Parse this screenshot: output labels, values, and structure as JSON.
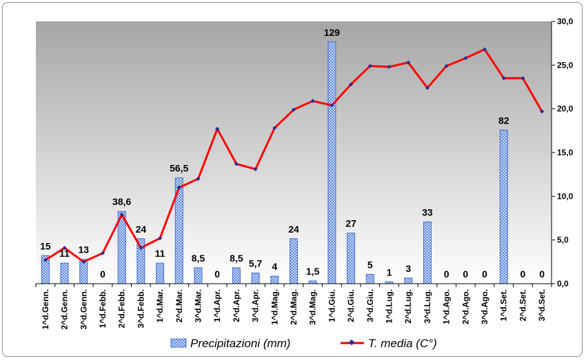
{
  "chart_data": {
    "type": "bar+line",
    "categories": [
      "1^d.Genn.",
      "2^d.Genn.",
      "3^d.Genn.",
      "1^d.Febb.",
      "2^d.Febb.",
      "3^d.Febb.",
      "1^d.Mar.",
      "2^d.Mar.",
      "3^d.Mar.",
      "1^d.Apr.",
      "2^d.Apr.",
      "3^d.Apr.",
      "1^d.Mag.",
      "2^d.Mag.",
      "3^d.Mag.",
      "1^d.Giu.",
      "2^d.Giu.",
      "3^d.Giu.",
      "1^d.Lug.",
      "2^d.Lug.",
      "3^d.Lug.",
      "1^d.Ago.",
      "2^d.Ago.",
      "3^d.Ago.",
      "1^d.Set.",
      "2^d.Set.",
      "3^d.Set."
    ],
    "series": [
      {
        "name": "Precipitazioni (mm)",
        "type": "bar",
        "axis": "primary",
        "values": [
          15,
          11,
          13,
          0,
          38.6,
          24,
          11,
          56.5,
          8.5,
          0,
          8.5,
          5.7,
          4,
          24,
          1.5,
          129,
          27,
          5,
          1,
          3,
          33,
          0,
          0,
          0,
          82,
          0,
          0
        ],
        "labels": [
          "15",
          "11",
          "13",
          "0",
          "38,6",
          "24",
          "11",
          "56,5",
          "8,5",
          "0",
          "8,5",
          "5,7",
          "4",
          "24",
          "1,5",
          "129",
          "27",
          "5",
          "1",
          "3",
          "33",
          "0",
          "0",
          "0",
          "82",
          "0",
          "0"
        ],
        "color": "#3f6fd0"
      },
      {
        "name": "T. media (C°)",
        "type": "line",
        "axis": "secondary",
        "values": [
          2.7,
          4.1,
          2.5,
          3.5,
          7.9,
          4.1,
          5.2,
          11.0,
          12.0,
          17.7,
          13.7,
          13.1,
          17.8,
          19.9,
          20.9,
          20.4,
          22.8,
          24.9,
          24.8,
          25.3,
          22.4,
          24.9,
          25.8,
          26.8,
          23.5,
          23.5,
          19.7
        ],
        "color": "#ff0000",
        "marker_color": "#1f2fa0"
      }
    ],
    "primary_axis": {
      "min": 0,
      "max": 140,
      "visible": false
    },
    "secondary_axis": {
      "min": 0,
      "max": 30,
      "ticks": [
        "0,0",
        "5,0",
        "10,0",
        "15,0",
        "20,0",
        "25,0",
        "30,0"
      ]
    },
    "background_gradient": {
      "top": "#a6a6a6",
      "bottom": "#ffffff"
    },
    "grid": false,
    "legend_position": "bottom"
  }
}
